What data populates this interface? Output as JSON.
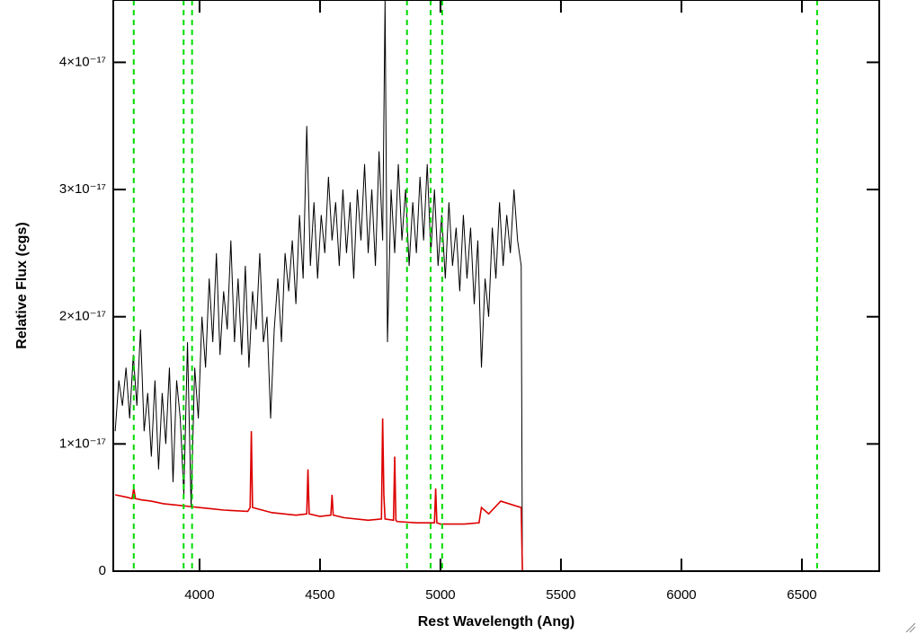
{
  "chart_data": {
    "type": "line",
    "xlabel": "Rest Wavelength (Ang)",
    "ylabel": "Relative Flux (cgs)",
    "xlim": [
      3642,
      6821
    ],
    "ylim": [
      0,
      4.49e-17
    ],
    "xticks": [
      4000,
      4500,
      5000,
      5500,
      6000,
      6500
    ],
    "yticks": [
      0,
      {
        "value": 1e-17,
        "label": "1×10⁻¹⁷"
      },
      {
        "value": 2e-17,
        "label": "2×10⁻¹⁷"
      },
      {
        "value": 3e-17,
        "label": "3×10⁻¹⁷"
      },
      {
        "value": 4e-17,
        "label": "4×10⁻¹⁷"
      }
    ],
    "vlines": {
      "color": "#00dd00",
      "x": [
        3727,
        3934,
        3969,
        4861,
        4959,
        5007,
        6563
      ]
    },
    "series": [
      {
        "color": "#000000",
        "x": [
          3650,
          3665,
          3680,
          3695,
          3710,
          3725,
          3740,
          3755,
          3770,
          3785,
          3800,
          3815,
          3830,
          3845,
          3860,
          3875,
          3890,
          3905,
          3920,
          3935,
          3950,
          3965,
          3980,
          3995,
          4010,
          4025,
          4040,
          4055,
          4070,
          4085,
          4100,
          4115,
          4130,
          4145,
          4160,
          4175,
          4190,
          4205,
          4220,
          4235,
          4250,
          4265,
          4280,
          4295,
          4310,
          4325,
          4340,
          4355,
          4370,
          4385,
          4400,
          4415,
          4430,
          4445,
          4460,
          4475,
          4490,
          4505,
          4520,
          4535,
          4550,
          4565,
          4580,
          4595,
          4610,
          4625,
          4640,
          4655,
          4670,
          4685,
          4700,
          4715,
          4730,
          4745,
          4760,
          4770,
          4780,
          4795,
          4810,
          4825,
          4840,
          4855,
          4870,
          4885,
          4900,
          4915,
          4930,
          4945,
          4960,
          4975,
          4990,
          5005,
          5020,
          5035,
          5050,
          5065,
          5080,
          5095,
          5110,
          5125,
          5140,
          5155,
          5170,
          5185,
          5200,
          5215,
          5230,
          5245,
          5260,
          5275,
          5290,
          5305,
          5320,
          5335,
          5340,
          6820
        ],
        "values": [
          1.1e-17,
          1.5e-17,
          1.3e-17,
          1.6e-17,
          1.2e-17,
          1.7e-17,
          1.3e-17,
          1.9e-17,
          1.1e-17,
          1.4e-17,
          9e-18,
          1.5e-17,
          8e-18,
          1.4e-17,
          1e-17,
          1.6e-17,
          7e-18,
          1.5e-17,
          1.2e-17,
          6e-18,
          1.8e-17,
          5e-18,
          1.6e-17,
          1.2e-17,
          2e-17,
          1.6e-17,
          2.3e-17,
          1.8e-17,
          2.5e-17,
          1.7e-17,
          2.2e-17,
          1.9e-17,
          2.6e-17,
          1.8e-17,
          2.3e-17,
          1.7e-17,
          2.4e-17,
          1.6e-17,
          2.2e-17,
          1.9e-17,
          2.5e-17,
          1.8e-17,
          2e-17,
          1.2e-17,
          1.9e-17,
          2.3e-17,
          1.8e-17,
          2.5e-17,
          2.2e-17,
          2.6e-17,
          2.1e-17,
          2.8e-17,
          2.3e-17,
          3.5e-17,
          2.4e-17,
          2.9e-17,
          2.3e-17,
          2.8e-17,
          2.5e-17,
          3.1e-17,
          2.6e-17,
          2.9e-17,
          2.4e-17,
          3e-17,
          2.5e-17,
          2.9e-17,
          2.3e-17,
          3e-17,
          2.6e-17,
          3.2e-17,
          2.5e-17,
          3e-17,
          2.4e-17,
          3.3e-17,
          2.6e-17,
          4.5e-17,
          1.8e-17,
          3e-17,
          2.5e-17,
          3.2e-17,
          2.6e-17,
          3e-17,
          2.4e-17,
          2.9e-17,
          2.5e-17,
          3.1e-17,
          2.6e-17,
          3.2e-17,
          2.5e-17,
          3e-17,
          2.4e-17,
          2.8e-17,
          2.3e-17,
          2.9e-17,
          2.4e-17,
          2.7e-17,
          2.2e-17,
          2.8e-17,
          2.3e-17,
          2.7e-17,
          2.1e-17,
          2.6e-17,
          1.6e-17,
          2.3e-17,
          2e-17,
          2.7e-17,
          2.3e-17,
          2.9e-17,
          2.4e-17,
          2.8e-17,
          2.5e-17,
          3e-17,
          2.6e-17,
          2.4e-17,
          0,
          0
        ]
      },
      {
        "color": "#dd0000",
        "x": [
          3650,
          3700,
          3720,
          3727,
          3734,
          3760,
          3800,
          3850,
          3900,
          3950,
          4000,
          4050,
          4100,
          4200,
          4210,
          4215,
          4220,
          4300,
          4400,
          4445,
          4450,
          4455,
          4500,
          4545,
          4550,
          4555,
          4600,
          4700,
          4755,
          4760,
          4765,
          4770,
          4805,
          4810,
          4815,
          4820,
          4900,
          4975,
          4980,
          4985,
          5000,
          5100,
          5160,
          5170,
          5200,
          5250,
          5335,
          5340,
          6820
        ],
        "values": [
          6e-18,
          5.8e-18,
          5.7e-18,
          6.5e-18,
          5.7e-18,
          5.6e-18,
          5.5e-18,
          5.3e-18,
          5.2e-18,
          5.1e-18,
          5e-18,
          4.9e-18,
          4.8e-18,
          4.7e-18,
          5e-18,
          1.1e-17,
          5e-18,
          4.6e-18,
          4.4e-18,
          4.5e-18,
          8e-18,
          4.5e-18,
          4.3e-18,
          4.4e-18,
          6e-18,
          4.4e-18,
          4.2e-18,
          4e-18,
          4.1e-18,
          1.2e-17,
          6e-18,
          4.1e-18,
          4e-18,
          9e-18,
          4e-18,
          3.9e-18,
          3.8e-18,
          3.8e-18,
          6.5e-18,
          3.8e-18,
          3.7e-18,
          3.7e-18,
          3.8e-18,
          5e-18,
          4.5e-18,
          5.5e-18,
          5e-18,
          0,
          0
        ]
      }
    ]
  }
}
